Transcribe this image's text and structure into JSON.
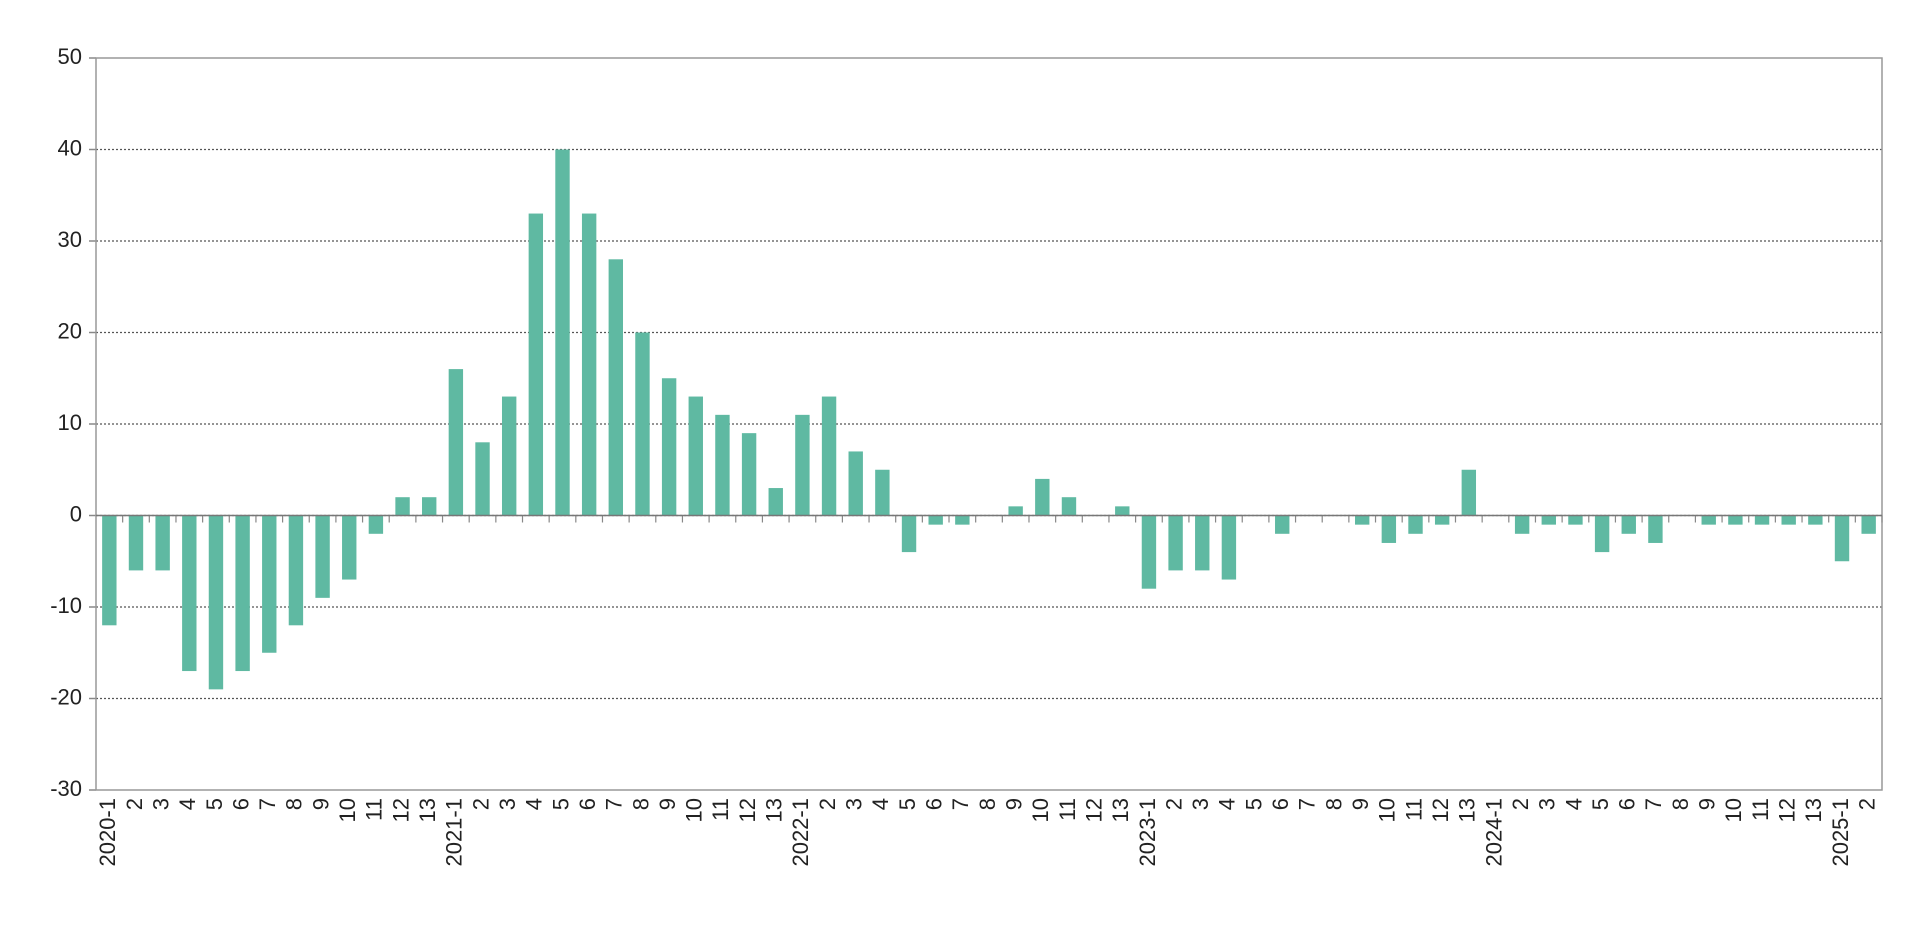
{
  "chart_data": {
    "type": "bar",
    "categories": [
      "2020-1",
      "2",
      "3",
      "4",
      "5",
      "6",
      "7",
      "8",
      "9",
      "10",
      "11",
      "12",
      "13",
      "2021-1",
      "2",
      "3",
      "4",
      "5",
      "6",
      "7",
      "8",
      "9",
      "10",
      "11",
      "12",
      "13",
      "2022-1",
      "2",
      "3",
      "4",
      "5",
      "6",
      "7",
      "8",
      "9",
      "10",
      "11",
      "12",
      "13",
      "2023-1",
      "2",
      "3",
      "4",
      "5",
      "6",
      "7",
      "8",
      "9",
      "10",
      "11",
      "12",
      "13",
      "2024-1",
      "2",
      "3",
      "4",
      "5",
      "6",
      "7",
      "8",
      "9",
      "10",
      "11",
      "12",
      "13",
      "2025-1",
      "2"
    ],
    "values": [
      -12,
      -6,
      -6,
      -17,
      -19,
      -17,
      -15,
      -12,
      -9,
      -7,
      -2,
      2,
      2,
      16,
      8,
      13,
      33,
      40,
      33,
      28,
      20,
      15,
      13,
      11,
      9,
      3,
      11,
      13,
      7,
      5,
      -4,
      -1,
      -1,
      0,
      1,
      4,
      2,
      0,
      1,
      -8,
      -6,
      -6,
      -7,
      0,
      -2,
      0,
      0,
      -1,
      -3,
      -2,
      -1,
      5,
      0,
      -2,
      -1,
      -1,
      -4,
      -2,
      -3,
      0,
      -1,
      -1,
      -1,
      -1,
      -1,
      -5,
      -2
    ],
    "color": "#5fb9a2",
    "ylim": [
      -30,
      50
    ],
    "yticks": [
      -30,
      -20,
      -10,
      0,
      10,
      20,
      30,
      40,
      50
    ],
    "grid": true
  }
}
